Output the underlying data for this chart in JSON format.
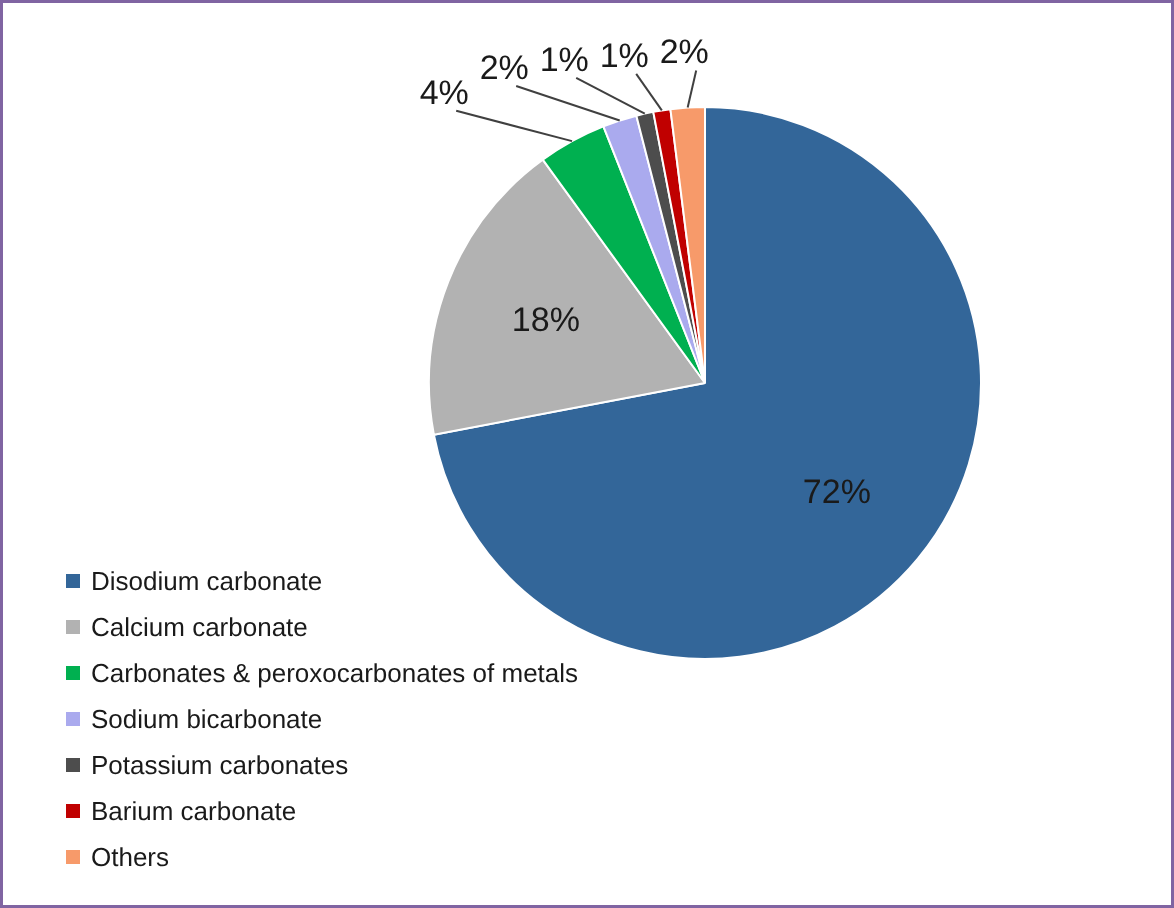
{
  "chart_data": {
    "type": "pie",
    "categories": [
      "Disodium carbonate",
      "Calcium carbonate",
      "Carbonates & peroxocarbonates of metals",
      "Sodium bicarbonate",
      "Potassium carbonates",
      "Barium carbonate",
      "Others"
    ],
    "values": [
      72,
      18,
      4,
      2,
      1,
      1,
      2
    ],
    "colors": [
      "#336699",
      "#b2b2b2",
      "#00b050",
      "#aaaaee",
      "#4d4d4d",
      "#c00000",
      "#f79a6a"
    ],
    "value_labels": [
      "72%",
      "18%",
      "4%",
      "2%",
      "1%",
      "1%",
      "2%"
    ],
    "legend": "bottom left"
  }
}
